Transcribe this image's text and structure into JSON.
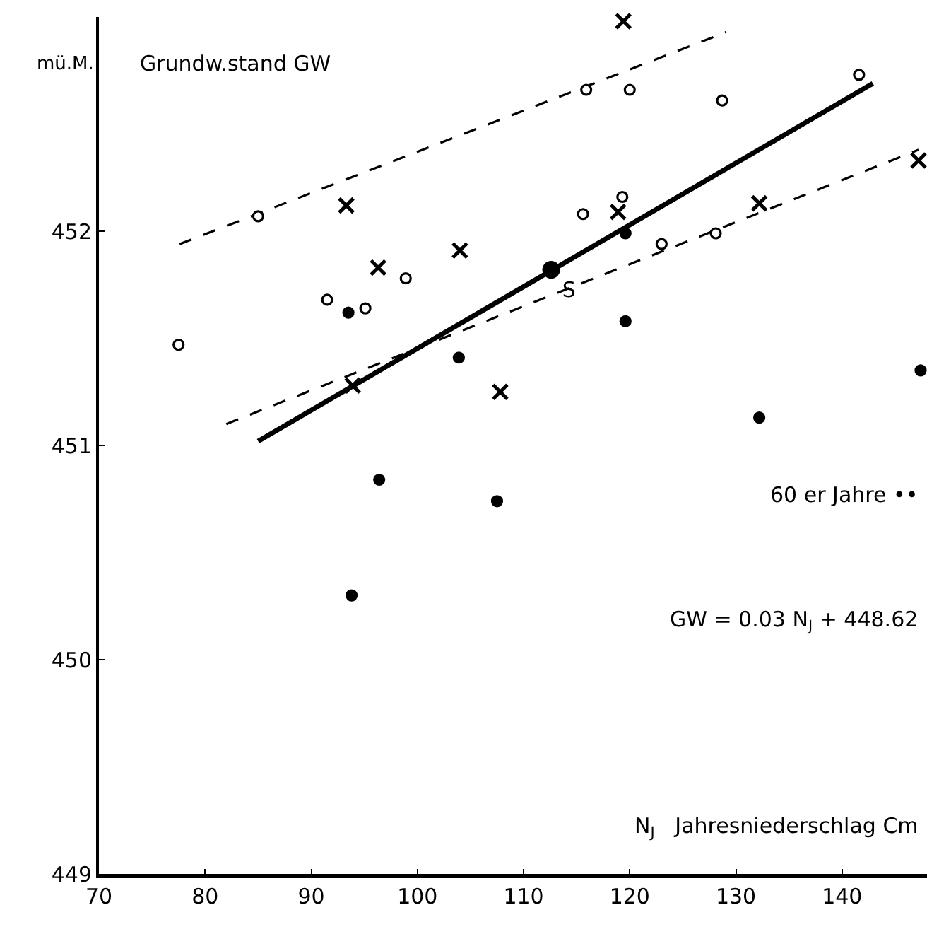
{
  "chart_data": {
    "type": "scatter",
    "ylabel": "mü.M.",
    "xlabel": "N$_{J}$   Jahresniederschlag Cm",
    "annotations": [
      "Grundw.stand GW",
      "60 er Jahre ••",
      "GW = 0.03 N$_{J}$ + 448.62"
    ],
    "xlim": [
      70,
      148
    ],
    "xticks": [
      70,
      80,
      90,
      100,
      110,
      120,
      130,
      140
    ],
    "ylim": [
      449,
      453
    ],
    "yticks": [
      449,
      450,
      451,
      452
    ],
    "grid": false,
    "series": [
      {
        "marker": "circle",
        "color": "#ffffff",
        "x": [
          85.0,
          77.5,
          91.5,
          95.1,
          98.9,
          115.9,
          120.0,
          128.7,
          141.6,
          115.6,
          119.3,
          123.0,
          128.1
        ],
        "values": [
          452.07,
          451.47,
          451.68,
          451.64,
          451.78,
          452.66,
          452.66,
          452.61,
          452.73,
          452.08,
          452.16,
          451.94,
          451.99
        ]
      },
      {
        "marker": "cross",
        "color": "#000000",
        "x": [
          93.3,
          96.3,
          104.0,
          93.9,
          107.8,
          119.4,
          118.9,
          132.2,
          147.2
        ],
        "values": [
          452.12,
          451.83,
          451.91,
          451.28,
          451.25,
          452.98,
          452.09,
          452.13,
          452.33
        ]
      },
      {
        "marker": "circle",
        "color": "#000000",
        "x": [
          93.5,
          103.9,
          119.6,
          119.6,
          147.4,
          132.2,
          96.4,
          107.5,
          93.8
        ],
        "values": [
          451.62,
          451.41,
          451.99,
          451.58,
          451.35,
          451.13,
          450.84,
          450.74,
          450.3
        ]
      },
      {
        "marker": "circle",
        "color": "#000000",
        "x": [
          112.6
        ],
        "values": [
          451.82
        ],
        "value_labels": [
          "S"
        ]
      },
      {
        "type": "line",
        "marker": "none",
        "line_style": "solid",
        "color": "#000000",
        "x": [
          85.0,
          142.9
        ],
        "values": [
          451.02,
          452.69
        ]
      },
      {
        "type": "line",
        "marker": "none",
        "line_style": "dashed",
        "color": "#000000",
        "x": [
          77.6,
          129.1
        ],
        "values": [
          451.94,
          452.93
        ]
      },
      {
        "type": "line",
        "marker": "none",
        "line_style": "dashed",
        "color": "#000000",
        "x": [
          82.0,
          147.2
        ],
        "values": [
          451.1,
          452.38
        ]
      }
    ]
  }
}
